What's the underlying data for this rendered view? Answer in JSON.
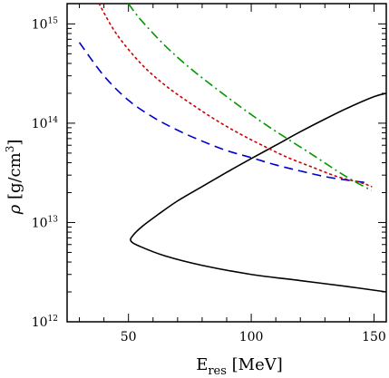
{
  "chart_data": {
    "type": "line",
    "title": "",
    "xlabel": {
      "main": "E",
      "sub": "res",
      "unit": "[MeV]"
    },
    "ylabel": {
      "symbol": "ρ",
      "unit_open": "[g/cm",
      "unit_sup": "3",
      "unit_close": "]"
    },
    "x_scale": "linear",
    "y_scale": "log",
    "xlim": [
      25,
      155
    ],
    "ylim": [
      1000000000000.0,
      1600000000000000.0
    ],
    "x_ticks": [
      {
        "value": 50,
        "label": "50"
      },
      {
        "value": 100,
        "label": "100"
      },
      {
        "value": 150,
        "label": "150"
      }
    ],
    "y_ticks": [
      {
        "value": 1000000000000.0,
        "base": "10",
        "exp": "12"
      },
      {
        "value": 10000000000000.0,
        "base": "10",
        "exp": "13"
      },
      {
        "value": 100000000000000.0,
        "base": "10",
        "exp": "14"
      },
      {
        "value": 1000000000000000.0,
        "base": "10",
        "exp": "15"
      }
    ],
    "grid": false,
    "legend": "none",
    "series": [
      {
        "style": "solid",
        "color": "#000000",
        "points": [
          [
            155,
            2000000000000.0
          ],
          [
            140,
            2250000000000.0
          ],
          [
            120,
            2600000000000.0
          ],
          [
            100,
            3000000000000.0
          ],
          [
            80,
            3700000000000.0
          ],
          [
            65,
            4600000000000.0
          ],
          [
            55,
            5700000000000.0
          ],
          [
            51,
            6500000000000.0
          ],
          [
            52,
            7500000000000.0
          ],
          [
            56,
            9300000000000.0
          ],
          [
            62,
            12000000000000.0
          ],
          [
            70,
            16500000000000.0
          ],
          [
            80,
            23000000000000.0
          ],
          [
            90,
            32000000000000.0
          ],
          [
            100,
            44000000000000.0
          ],
          [
            110,
            60000000000000.0
          ],
          [
            120,
            82000000000000.0
          ],
          [
            130,
            110000000000000.0
          ],
          [
            140,
            145000000000000.0
          ],
          [
            150,
            185000000000000.0
          ],
          [
            155,
            200000000000000.0
          ]
        ]
      },
      {
        "style": "dashed",
        "color": "#0000cc",
        "points": [
          [
            30,
            650000000000000.0
          ],
          [
            40,
            300000000000000.0
          ],
          [
            50,
            170000000000000.0
          ],
          [
            60,
            115000000000000.0
          ],
          [
            70,
            85000000000000.0
          ],
          [
            80,
            66000000000000.0
          ],
          [
            90,
            53000000000000.0
          ],
          [
            100,
            45000000000000.0
          ],
          [
            110,
            38000000000000.0
          ],
          [
            120,
            33000000000000.0
          ],
          [
            130,
            29000000000000.0
          ],
          [
            140,
            26500000000000.0
          ],
          [
            148,
            25000000000000.0
          ]
        ]
      },
      {
        "style": "dotted",
        "color": "#cc0000",
        "points": [
          [
            38,
            1600000000000000.0
          ],
          [
            45,
            800000000000000.0
          ],
          [
            55,
            400000000000000.0
          ],
          [
            65,
            240000000000000.0
          ],
          [
            75,
            160000000000000.0
          ],
          [
            85,
            110000000000000.0
          ],
          [
            95,
            79000000000000.0
          ],
          [
            105,
            59000000000000.0
          ],
          [
            115,
            45000000000000.0
          ],
          [
            125,
            36000000000000.0
          ],
          [
            135,
            29000000000000.0
          ],
          [
            145,
            25000000000000.0
          ],
          [
            149,
            23000000000000.0
          ]
        ]
      },
      {
        "style": "dashdot",
        "color": "#009900",
        "points": [
          [
            50,
            1600000000000000.0
          ],
          [
            55,
            1100000000000000.0
          ],
          [
            65,
            600000000000000.0
          ],
          [
            75,
            360000000000000.0
          ],
          [
            85,
            230000000000000.0
          ],
          [
            95,
            150000000000000.0
          ],
          [
            105,
            100000000000000.0
          ],
          [
            115,
            69000000000000.0
          ],
          [
            125,
            48000000000000.0
          ],
          [
            135,
            33000000000000.0
          ],
          [
            142,
            26000000000000.0
          ],
          [
            149,
            21000000000000.0
          ]
        ]
      }
    ]
  }
}
